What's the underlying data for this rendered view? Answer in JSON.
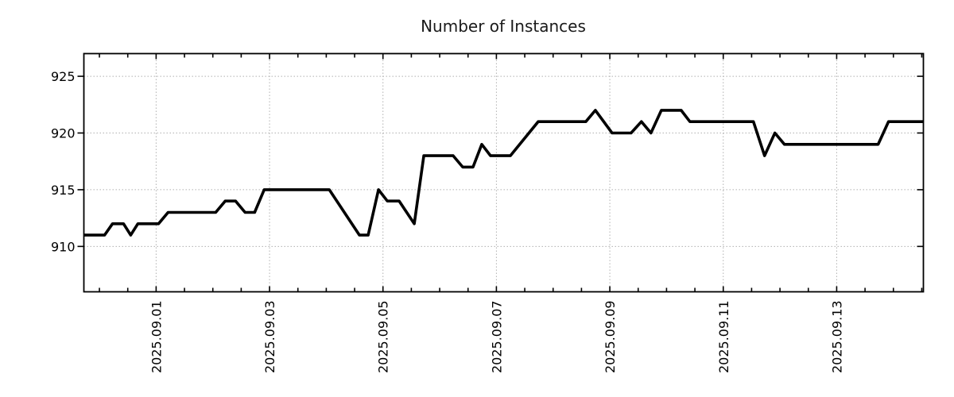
{
  "page": {
    "background": "#ffffff"
  },
  "chart_data": {
    "type": "line",
    "title": "Number of Instances",
    "grid": "dotted",
    "legend": "none",
    "colors": {
      "line": "#000000",
      "grid": "#b0b0b0",
      "border": "#000000",
      "text": "#000000",
      "title_text": "#1a1a1a",
      "background": "#ffffff"
    },
    "x_axis": {
      "unit": "days since 2025-08-30 00:00 (decimal)",
      "range": [
        0.726,
        15.529
      ],
      "minor_tick_interval": 0.5,
      "major_ticks": [
        {
          "d": 2,
          "label": "2025.09.01"
        },
        {
          "d": 4,
          "label": "2025.09.03"
        },
        {
          "d": 6,
          "label": "2025.09.05"
        },
        {
          "d": 8,
          "label": "2025.09.07"
        },
        {
          "d": 10,
          "label": "2025.09.09"
        },
        {
          "d": 12,
          "label": "2025.09.11"
        },
        {
          "d": 14,
          "label": "2025.09.13"
        }
      ]
    },
    "y_axis": {
      "unit": "instances",
      "range": [
        906,
        927
      ],
      "ticks": [
        910,
        915,
        920,
        925
      ]
    },
    "series": [
      {
        "name": "instances",
        "color": "#000000",
        "points": [
          [
            0.726,
            911
          ],
          [
            1.09,
            911
          ],
          [
            1.23,
            912
          ],
          [
            1.426,
            912
          ],
          [
            1.552,
            911
          ],
          [
            1.678,
            912
          ],
          [
            2.042,
            912
          ],
          [
            2.21,
            913
          ],
          [
            3.05,
            913
          ],
          [
            3.218,
            914
          ],
          [
            3.401,
            914
          ],
          [
            3.569,
            913
          ],
          [
            3.737,
            913
          ],
          [
            3.905,
            915
          ],
          [
            5.053,
            915
          ],
          [
            5.585,
            911
          ],
          [
            5.739,
            911
          ],
          [
            5.921,
            915
          ],
          [
            6.076,
            914
          ],
          [
            6.286,
            914
          ],
          [
            6.552,
            912
          ],
          [
            6.72,
            918
          ],
          [
            7.238,
            918
          ],
          [
            7.406,
            917
          ],
          [
            7.588,
            917
          ],
          [
            7.742,
            919
          ],
          [
            7.896,
            918
          ],
          [
            8.246,
            918
          ],
          [
            8.737,
            921
          ],
          [
            9.577,
            921
          ],
          [
            9.745,
            922
          ],
          [
            10.039,
            920
          ],
          [
            10.375,
            920
          ],
          [
            10.557,
            921
          ],
          [
            10.725,
            920
          ],
          [
            10.908,
            922
          ],
          [
            11.258,
            922
          ],
          [
            11.412,
            921
          ],
          [
            12.532,
            921
          ],
          [
            12.728,
            918
          ],
          [
            12.91,
            920
          ],
          [
            13.078,
            919
          ],
          [
            14.731,
            919
          ],
          [
            14.913,
            921
          ],
          [
            15.529,
            921
          ]
        ]
      }
    ]
  }
}
